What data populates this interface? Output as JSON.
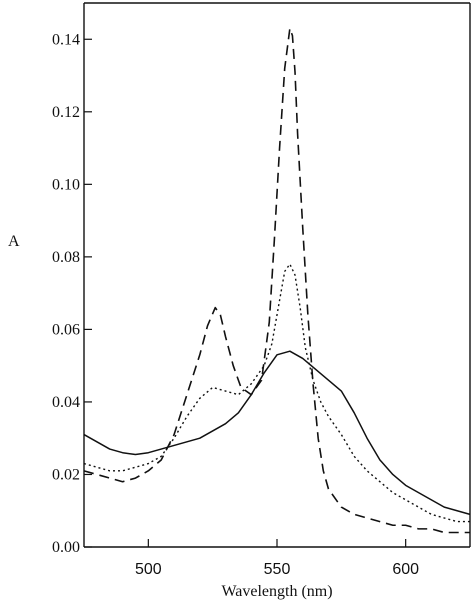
{
  "chart_data": {
    "type": "line",
    "title": "",
    "xlabel": "Wavelength (nm)",
    "ylabel": "A",
    "xlim": [
      475,
      625
    ],
    "ylim": [
      0,
      0.15
    ],
    "x_ticks": [
      500,
      550,
      600
    ],
    "x_tick_labels": [
      "500",
      "550",
      "600"
    ],
    "y_ticks": [
      0,
      0.02,
      0.04,
      0.06,
      0.08,
      0.1,
      0.12,
      0.14
    ],
    "y_tick_labels": [
      "0.00",
      "0.02",
      "0.04",
      "0.06",
      "0.08",
      "0.10",
      "0.12",
      "0.14"
    ],
    "grid": false,
    "legend": "none",
    "series": [
      {
        "style": "solid",
        "x": [
          475,
          480,
          485,
          490,
          495,
          500,
          505,
          510,
          515,
          520,
          525,
          530,
          535,
          540,
          545,
          550,
          555,
          560,
          565,
          570,
          575,
          580,
          585,
          590,
          595,
          600,
          605,
          610,
          615,
          620,
          625
        ],
        "values": [
          0.031,
          0.029,
          0.027,
          0.026,
          0.0255,
          0.026,
          0.027,
          0.028,
          0.029,
          0.03,
          0.032,
          0.034,
          0.037,
          0.042,
          0.048,
          0.053,
          0.054,
          0.052,
          0.049,
          0.046,
          0.043,
          0.037,
          0.03,
          0.024,
          0.02,
          0.017,
          0.015,
          0.013,
          0.011,
          0.01,
          0.009
        ]
      },
      {
        "style": "dotted",
        "x": [
          475,
          480,
          485,
          490,
          495,
          500,
          505,
          510,
          515,
          520,
          525,
          530,
          535,
          540,
          545,
          548,
          551,
          553,
          555,
          557,
          559,
          561,
          564,
          567,
          570,
          575,
          580,
          585,
          590,
          595,
          600,
          605,
          610,
          615,
          620,
          625
        ],
        "values": [
          0.023,
          0.022,
          0.021,
          0.021,
          0.022,
          0.023,
          0.025,
          0.03,
          0.036,
          0.041,
          0.044,
          0.043,
          0.042,
          0.045,
          0.05,
          0.056,
          0.068,
          0.076,
          0.078,
          0.075,
          0.066,
          0.055,
          0.046,
          0.04,
          0.036,
          0.031,
          0.025,
          0.021,
          0.018,
          0.015,
          0.013,
          0.011,
          0.009,
          0.008,
          0.007,
          0.007
        ]
      },
      {
        "style": "dashed",
        "x": [
          475,
          480,
          485,
          490,
          495,
          500,
          505,
          510,
          515,
          520,
          523,
          526,
          528,
          530,
          533,
          536,
          540,
          544,
          547,
          549,
          551,
          553,
          555,
          556,
          557,
          558,
          560,
          562,
          564,
          566,
          568,
          570,
          575,
          580,
          585,
          590,
          595,
          600,
          605,
          610,
          615,
          620,
          625
        ],
        "values": [
          0.021,
          0.02,
          0.019,
          0.018,
          0.019,
          0.021,
          0.024,
          0.031,
          0.042,
          0.053,
          0.061,
          0.066,
          0.064,
          0.058,
          0.05,
          0.044,
          0.042,
          0.046,
          0.062,
          0.085,
          0.11,
          0.132,
          0.143,
          0.141,
          0.131,
          0.114,
          0.088,
          0.064,
          0.045,
          0.03,
          0.021,
          0.016,
          0.011,
          0.009,
          0.008,
          0.007,
          0.006,
          0.006,
          0.005,
          0.005,
          0.004,
          0.004,
          0.004
        ]
      }
    ]
  }
}
